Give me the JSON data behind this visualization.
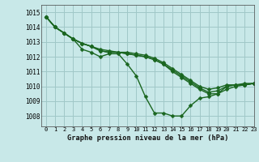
{
  "title": "Graphe pression niveau de la mer (hPa)",
  "background_color": "#c8e8e8",
  "grid_color": "#a0c8c8",
  "line_color": "#1a6620",
  "marker_size": 2.5,
  "line_width": 1.0,
  "xlim": [
    -0.5,
    23
  ],
  "ylim": [
    1007.3,
    1015.5
  ],
  "yticks": [
    1008,
    1009,
    1010,
    1011,
    1012,
    1013,
    1014,
    1015
  ],
  "xticks": [
    0,
    1,
    2,
    3,
    4,
    5,
    6,
    7,
    8,
    9,
    10,
    11,
    12,
    13,
    14,
    15,
    16,
    17,
    18,
    19,
    20,
    21,
    22,
    23
  ],
  "series": [
    [
      1014.7,
      1014.0,
      1013.6,
      1013.2,
      1012.5,
      1012.3,
      1012.0,
      1012.2,
      1012.2,
      1011.5,
      1010.7,
      1009.3,
      1008.2,
      1008.2,
      1008.0,
      1008.0,
      1008.7,
      1009.2,
      1009.3,
      1009.5,
      1010.0,
      1010.1,
      1010.2,
      1010.2
    ],
    [
      1014.7,
      1014.0,
      1013.6,
      1013.2,
      1012.9,
      1012.7,
      1012.4,
      1012.3,
      1012.3,
      1012.2,
      1012.1,
      1012.0,
      1011.8,
      1011.5,
      1011.0,
      1010.6,
      1010.2,
      1009.8,
      1009.5,
      1009.5,
      1009.8,
      1010.0,
      1010.1,
      1010.2
    ],
    [
      1014.7,
      1014.0,
      1013.6,
      1013.2,
      1012.9,
      1012.7,
      1012.4,
      1012.3,
      1012.3,
      1012.2,
      1012.1,
      1012.0,
      1011.8,
      1011.5,
      1011.1,
      1010.7,
      1010.3,
      1009.9,
      1009.6,
      1009.7,
      1010.0,
      1010.1,
      1010.1,
      1010.2
    ],
    [
      1014.7,
      1014.0,
      1013.6,
      1013.2,
      1012.9,
      1012.7,
      1012.5,
      1012.4,
      1012.3,
      1012.3,
      1012.2,
      1012.1,
      1011.9,
      1011.6,
      1011.2,
      1010.8,
      1010.4,
      1010.0,
      1009.8,
      1009.9,
      1010.1,
      1010.1,
      1010.1,
      1010.2
    ]
  ]
}
